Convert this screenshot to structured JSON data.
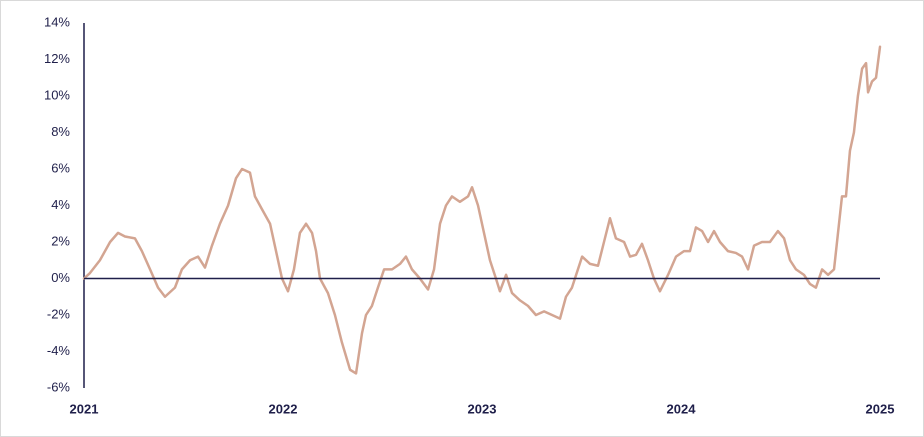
{
  "chart_data": {
    "type": "line",
    "x": [
      2021.0,
      2021.03,
      2021.08,
      2021.131,
      2021.171,
      2021.206,
      2021.256,
      2021.291,
      2021.332,
      2021.372,
      2021.407,
      2021.457,
      2021.492,
      2021.533,
      2021.573,
      2021.608,
      2021.643,
      2021.683,
      2021.724,
      2021.764,
      2021.794,
      2021.834,
      2021.859,
      2021.894,
      2021.935,
      2021.965,
      2021.995,
      2022.025,
      2022.055,
      2022.085,
      2022.116,
      2022.146,
      2022.166,
      2022.186,
      2022.226,
      2022.261,
      2022.296,
      2022.337,
      2022.367,
      2022.397,
      2022.417,
      2022.447,
      2022.477,
      2022.508,
      2022.548,
      2022.588,
      2022.618,
      2022.648,
      2022.688,
      2022.729,
      2022.759,
      2022.789,
      2022.819,
      2022.849,
      2022.889,
      2022.93,
      2022.95,
      2022.98,
      2023.01,
      2023.04,
      2023.07,
      2023.09,
      2023.121,
      2023.151,
      2023.191,
      2023.231,
      2023.271,
      2023.312,
      2023.352,
      2023.392,
      2023.422,
      2023.452,
      2023.482,
      2023.503,
      2023.543,
      2023.583,
      2023.613,
      2023.643,
      2023.673,
      2023.714,
      2023.744,
      2023.774,
      2023.804,
      2023.834,
      2023.864,
      2023.894,
      2023.935,
      2023.975,
      2024.015,
      2024.045,
      2024.075,
      2024.106,
      2024.136,
      2024.166,
      2024.196,
      2024.236,
      2024.276,
      2024.307,
      2024.337,
      2024.367,
      2024.407,
      2024.447,
      2024.487,
      2024.518,
      2024.548,
      2024.578,
      2024.618,
      2024.648,
      2024.678,
      2024.709,
      2024.739,
      2024.769,
      2024.789,
      2024.809,
      2024.829,
      2024.849,
      2024.869,
      2024.889,
      2024.91,
      2024.93,
      2024.94,
      2024.96,
      2024.98,
      2025.0
    ],
    "series": [
      {
        "color": "#d3a592",
        "values": [
          0,
          0.3,
          1.0,
          2.0,
          2.5,
          2.3,
          2.2,
          1.5,
          0.5,
          -0.5,
          -1.0,
          -0.5,
          0.5,
          1.0,
          1.2,
          0.6,
          1.8,
          3.0,
          4.0,
          5.5,
          6.0,
          5.8,
          4.5,
          3.8,
          3.0,
          1.5,
          0.0,
          -0.7,
          0.5,
          2.5,
          3.0,
          2.5,
          1.5,
          0.0,
          -0.8,
          -2.0,
          -3.5,
          -5.0,
          -5.2,
          -3.0,
          -2.0,
          -1.5,
          -0.5,
          0.5,
          0.5,
          0.8,
          1.2,
          0.5,
          0.0,
          -0.6,
          0.5,
          3.0,
          4.0,
          4.5,
          4.2,
          4.5,
          5.0,
          4.0,
          2.5,
          1.0,
          0.0,
          -0.7,
          0.2,
          -0.8,
          -1.2,
          -1.5,
          -2.0,
          -1.8,
          -2.0,
          -2.2,
          -1.0,
          -0.5,
          0.5,
          1.2,
          0.8,
          0.7,
          2.0,
          3.3,
          2.2,
          2.0,
          1.2,
          1.3,
          1.9,
          1.0,
          0.0,
          -0.7,
          0.2,
          1.2,
          1.5,
          1.5,
          2.8,
          2.6,
          2.0,
          2.6,
          2.0,
          1.5,
          1.4,
          1.2,
          0.5,
          1.8,
          2.0,
          2.0,
          2.6,
          2.2,
          1.0,
          0.5,
          0.2,
          -0.3,
          -0.5,
          0.5,
          0.2,
          0.5,
          2.5,
          4.5,
          4.5,
          7.0,
          8.0,
          10.0,
          11.5,
          11.8,
          10.2,
          10.8,
          11.0,
          12.7
        ]
      }
    ],
    "xlim": [
      2021,
      2025
    ],
    "xticks": [
      2021,
      2022,
      2023,
      2024,
      2025
    ],
    "ylim": [
      -6,
      14
    ],
    "yticks": [
      {
        "value": 14,
        "label": "14%"
      },
      {
        "value": 12,
        "label": "12%"
      },
      {
        "value": 10,
        "label": "10%"
      },
      {
        "value": 8,
        "label": "8%"
      },
      {
        "value": 6,
        "label": "6%"
      },
      {
        "value": 4,
        "label": "4%"
      },
      {
        "value": 2,
        "label": "2%"
      },
      {
        "value": 0,
        "label": "0%"
      },
      {
        "value": -2,
        "label": "-2%"
      },
      {
        "value": -4,
        "label": "-4%"
      },
      {
        "value": -6,
        "label": "-6%"
      }
    ],
    "grid": false,
    "axis_color": "#1f1f4a"
  }
}
